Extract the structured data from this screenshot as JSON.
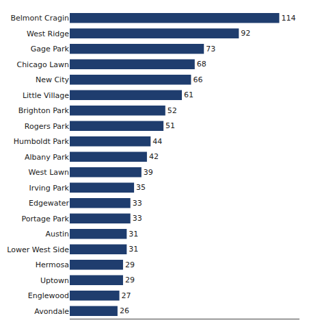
{
  "chart_data": {
    "type": "bar",
    "orientation": "horizontal",
    "categories": [
      "Belmont Cragin",
      "West Ridge",
      "Gage Park",
      "Chicago Lawn",
      "New City",
      "Little Village",
      "Brighton Park",
      "Rogers Park",
      "Humboldt Park",
      "Albany Park",
      "West Lawn",
      "Irving Park",
      "Edgewater",
      "Portage Park",
      "Austin",
      "Lower West Side",
      "Hermosa",
      "Uptown",
      "Englewood",
      "Avondale"
    ],
    "values": [
      114,
      92,
      73,
      68,
      66,
      61,
      52,
      51,
      44,
      42,
      39,
      35,
      33,
      33,
      31,
      31,
      29,
      29,
      27,
      26
    ],
    "color": "#1f3d6e",
    "xlim": [
      0,
      125
    ],
    "data_labels": true,
    "tick_labels": "y",
    "grid": false
  }
}
